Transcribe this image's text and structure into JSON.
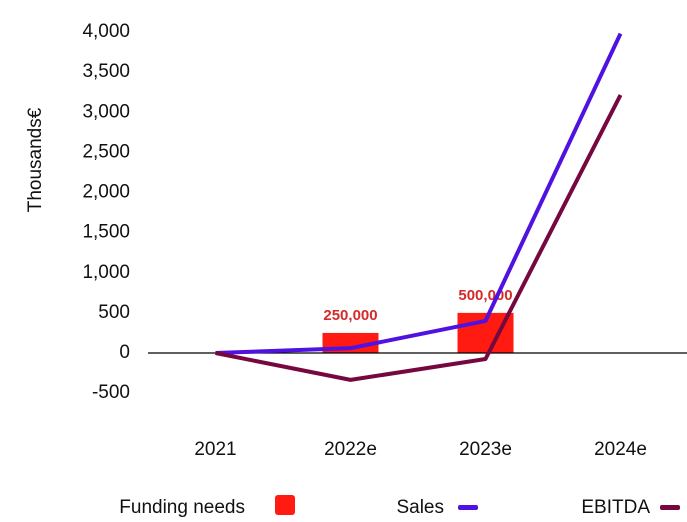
{
  "chart_data": {
    "type": "bar-line",
    "y_axis_label": "Thousands€",
    "categories": [
      "2021",
      "2022e",
      "2023e",
      "2024e"
    ],
    "series": [
      {
        "name": "Funding needs",
        "type": "bar",
        "color": "#ff1a12",
        "values": [
          null,
          250,
          500,
          null
        ],
        "value_labels": [
          null,
          "250,000",
          "500,000",
          null
        ]
      },
      {
        "name": "Sales",
        "type": "line",
        "color": "#4f12e0",
        "values": [
          0,
          60,
          400,
          3980
        ]
      },
      {
        "name": "EBITDA",
        "type": "line",
        "color": "#76083f",
        "values": [
          0,
          -335,
          -75,
          3215
        ]
      }
    ],
    "ylim": [
      -750,
      4100
    ],
    "yticks": [
      -500,
      0,
      500,
      {
        "value": 1000,
        "label": "1,000"
      },
      {
        "value": 1500,
        "label": "1,500"
      },
      {
        "value": 2000,
        "label": "2,000"
      },
      {
        "value": 2500,
        "label": "2,500"
      },
      {
        "value": 3000,
        "label": "3,000"
      },
      {
        "value": 3500,
        "label": "3,500"
      },
      {
        "value": 4000,
        "label": "4,000"
      }
    ]
  }
}
